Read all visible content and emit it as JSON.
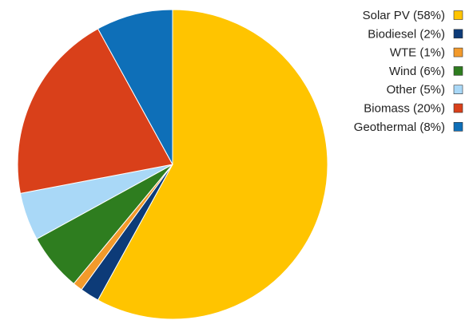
{
  "chart_data": {
    "type": "pie",
    "title": "",
    "legend_position": "right",
    "unit": "%",
    "slices": [
      {
        "label": "Solar PV (58%)",
        "name": "Solar PV",
        "value": 58,
        "color": "#FFC400"
      },
      {
        "label": "Biodiesel (2%)",
        "name": "Biodiesel",
        "value": 2,
        "color": "#0D3B78"
      },
      {
        "label": "WTE (1%)",
        "name": "WTE",
        "value": 1,
        "color": "#F39A2B"
      },
      {
        "label": "Wind (6%)",
        "name": "Wind",
        "value": 6,
        "color": "#2E7D1F"
      },
      {
        "label": "Other (5%)",
        "name": "Other",
        "value": 5,
        "color": "#A9D8F7"
      },
      {
        "label": "Biomass (20%)",
        "name": "Biomass",
        "value": 20,
        "color": "#D9401A"
      },
      {
        "label": "Geothermal (8%)",
        "name": "Geothermal",
        "value": 8,
        "color": "#0E6FB8"
      }
    ]
  }
}
